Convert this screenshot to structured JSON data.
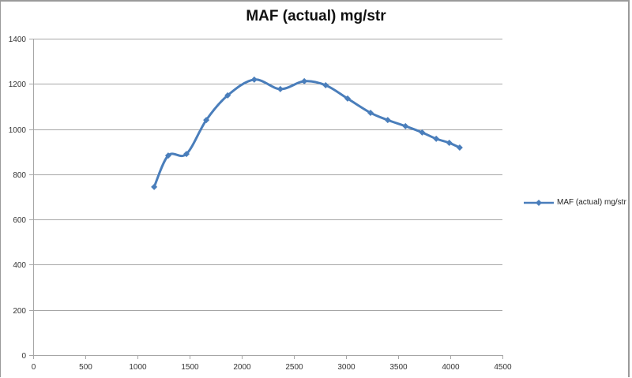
{
  "chart_data": {
    "type": "line",
    "title": "MAF (actual)  mg/str",
    "xlabel": "",
    "ylabel": "",
    "xlim": [
      0,
      4500
    ],
    "ylim": [
      0,
      1400
    ],
    "x_ticks": [
      0,
      500,
      1000,
      1500,
      2000,
      2500,
      3000,
      3500,
      4000,
      4500
    ],
    "y_ticks": [
      0,
      200,
      400,
      600,
      800,
      1000,
      1200,
      1400
    ],
    "grid": {
      "horizontal": true,
      "vertical": false
    },
    "legend_position": "right",
    "smoothed": true,
    "series": [
      {
        "name": "MAF (actual)  mg/str",
        "color": "#4a7ebb",
        "marker": "diamond",
        "x": [
          1160,
          1295,
          1470,
          1660,
          1865,
          2120,
          2370,
          2600,
          2805,
          3015,
          3235,
          3400,
          3570,
          3730,
          3865,
          3990,
          4090
        ],
        "values": [
          744,
          883,
          890,
          1040,
          1149,
          1219,
          1177,
          1212,
          1194,
          1135,
          1072,
          1040,
          1013,
          985,
          957,
          939,
          918
        ]
      }
    ]
  },
  "chart": {
    "title": "MAF (actual)  mg/str",
    "legend_label": "MAF (actual)  mg/str",
    "line_color": "#4a7ebb",
    "grid_color": "#a6a6a6",
    "axis_color": "#a6a6a6",
    "tick_label_color": "#333333"
  }
}
